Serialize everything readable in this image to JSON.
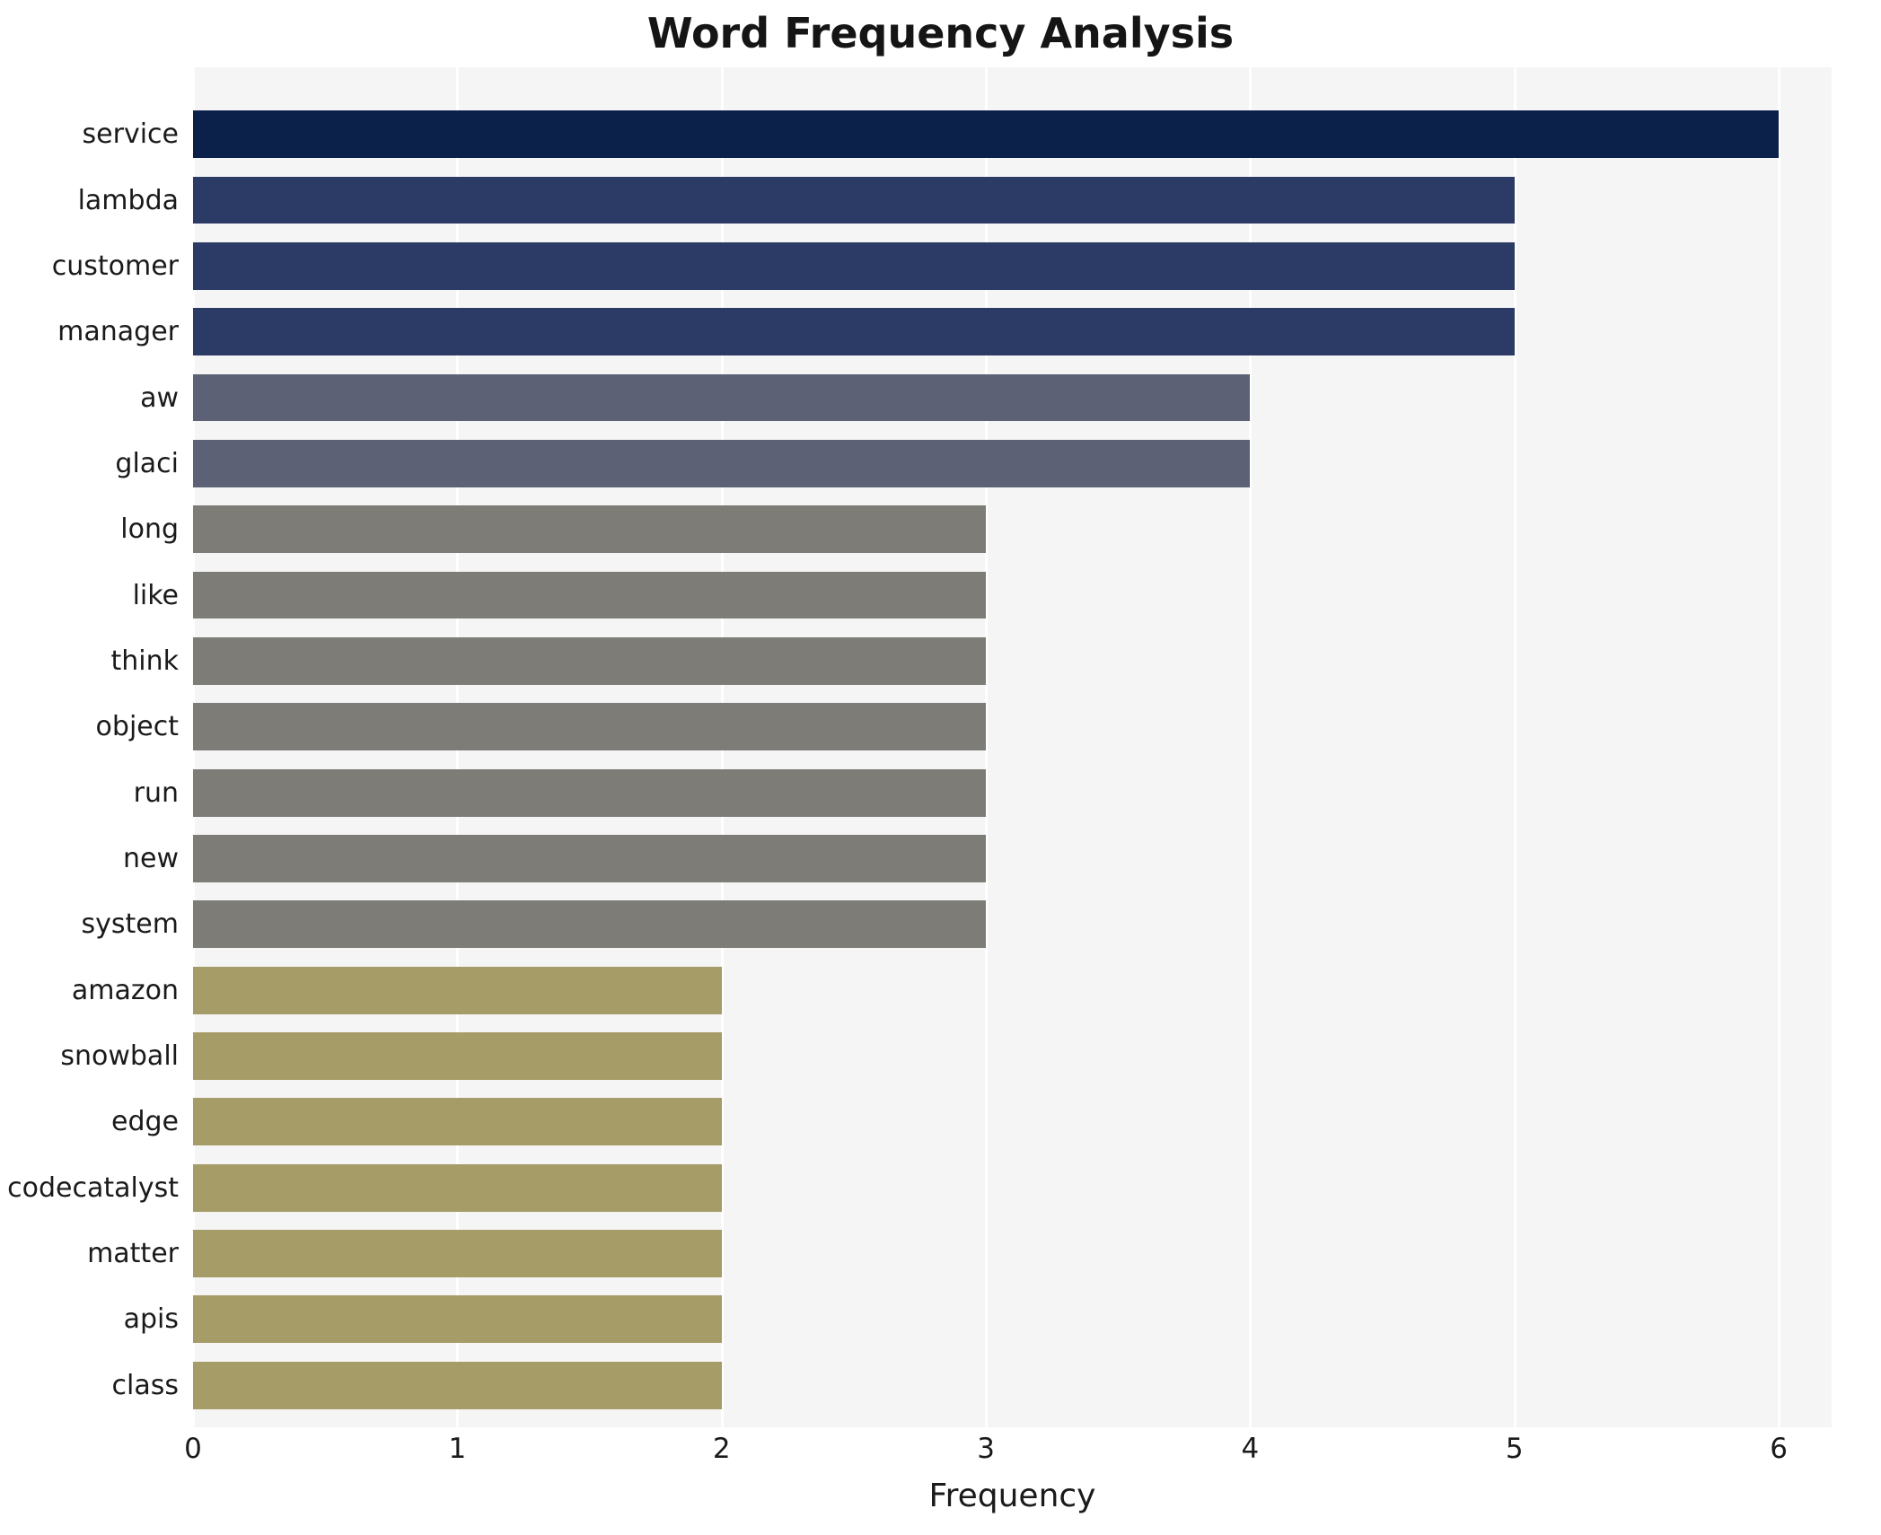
{
  "title": "Word Frequency Analysis",
  "xlabel": "Frequency",
  "chart_data": {
    "type": "bar",
    "orientation": "horizontal",
    "title": "Word Frequency Analysis",
    "xlabel": "Frequency",
    "ylabel": "",
    "categories": [
      "service",
      "lambda",
      "customer",
      "manager",
      "aw",
      "glaci",
      "long",
      "like",
      "think",
      "object",
      "run",
      "new",
      "system",
      "amazon",
      "snowball",
      "edge",
      "codecatalyst",
      "matter",
      "apis",
      "class"
    ],
    "values": [
      6,
      5,
      5,
      5,
      4,
      4,
      3,
      3,
      3,
      3,
      3,
      3,
      3,
      2,
      2,
      2,
      2,
      2,
      2,
      2
    ],
    "bar_colors": [
      "#0c2149",
      "#2c3b66",
      "#2c3b66",
      "#2c3b66",
      "#5d6176",
      "#5d6176",
      "#7d7c77",
      "#7d7c77",
      "#7d7c77",
      "#7d7c77",
      "#7d7c77",
      "#7d7c77",
      "#7d7c77",
      "#a69c67",
      "#a69c67",
      "#a69c67",
      "#a69c67",
      "#a69c67",
      "#a69c67",
      "#a69c67"
    ],
    "xticks": [
      0,
      1,
      2,
      3,
      4,
      5,
      6
    ],
    "xlim": [
      0,
      6.2
    ],
    "grid": true,
    "legend": "none",
    "plot_background": "#f5f5f6",
    "gridline_color": "#ffffff"
  }
}
